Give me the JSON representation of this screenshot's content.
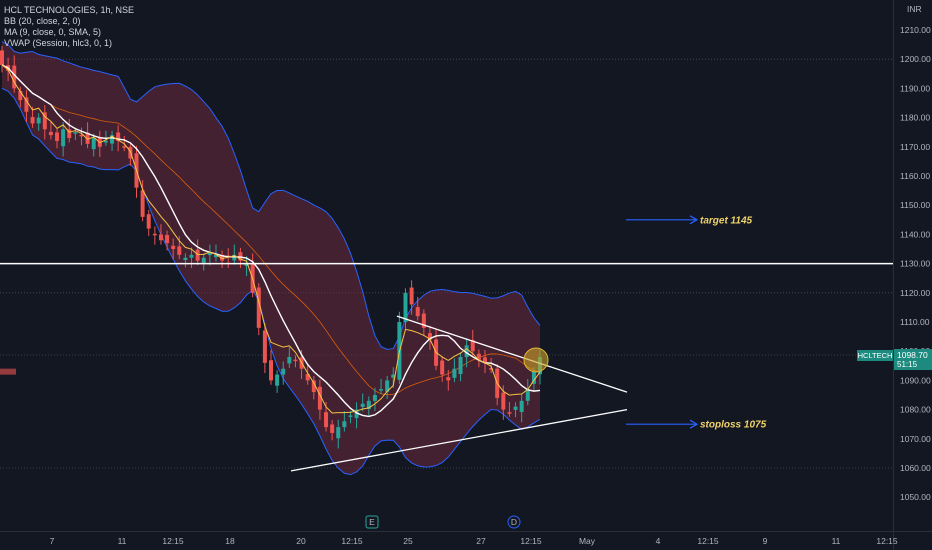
{
  "legend": {
    "symbol_line": "HCL TECHNOLOGIES, 1h, NSE",
    "bb_line": "BB (20, close, 2, 0)",
    "ma_line": "MA (9, close, 0, SMA, 5)",
    "vwap_line": "VWAP (Session, hlc3, 0, 1)"
  },
  "currency": "INR",
  "price_tag": {
    "symbol": "HCLTECH",
    "price": "1098.70",
    "countdown": "51:15"
  },
  "annotations": {
    "target": "target 1145",
    "stoploss": "stoploss 1075"
  },
  "markers": {
    "earnings": "E",
    "dividend": "D"
  },
  "colors": {
    "background": "#131722",
    "up": "#26a69a",
    "down": "#ef5350",
    "bb_fill": "#6d2a3e",
    "bb_line": "#2962ff",
    "ma": "#ffffff",
    "vwap": "#f5c542",
    "annotation": "#f0d36b",
    "arrow": "#2962ff"
  },
  "chart_data": {
    "type": "candlestick",
    "title": "HCL TECHNOLOGIES, 1h, NSE",
    "y_axis_ticks": [
      "1210.00",
      "1200.00",
      "1190.00",
      "1180.00",
      "1170.00",
      "1160.00",
      "1150.00",
      "1140.00",
      "1130.00",
      "1120.00",
      "1110.00",
      "1100.00",
      "1090.00",
      "1080.00",
      "1070.00",
      "1060.00",
      "1050.00"
    ],
    "x_axis_ticks": [
      "7",
      "11",
      "12:15",
      "18",
      "20",
      "12:15",
      "25",
      "27",
      "12:15",
      "May",
      "4",
      "12:15",
      "9",
      "11",
      "12:15"
    ],
    "ylim": [
      1045,
      1215
    ],
    "resistance_level": 1130,
    "current_price": 1098.7,
    "target": 1145,
    "stoploss": 1075,
    "candles_close": [
      1198,
      1196,
      1190,
      1186,
      1182,
      1178,
      1180,
      1176,
      1174,
      1172,
      1176,
      1173,
      1175,
      1174,
      1171,
      1173,
      1170,
      1172,
      1174,
      1172,
      1170,
      1166,
      1156,
      1146,
      1142,
      1140,
      1138,
      1137,
      1135,
      1133,
      1132,
      1133,
      1131,
      1132,
      1134,
      1133,
      1131,
      1132,
      1133,
      1131,
      1130,
      1120,
      1108,
      1096,
      1090,
      1092,
      1094,
      1098,
      1097,
      1094,
      1090,
      1086,
      1080,
      1074,
      1072,
      1074,
      1076,
      1078,
      1080,
      1082,
      1083,
      1085,
      1087,
      1090,
      1092,
      1110,
      1120,
      1116,
      1112,
      1108,
      1104,
      1095,
      1092,
      1090,
      1094,
      1098,
      1102,
      1100,
      1097,
      1096,
      1094,
      1084,
      1080,
      1079,
      1081,
      1083,
      1087,
      1093,
      1098
    ]
  }
}
